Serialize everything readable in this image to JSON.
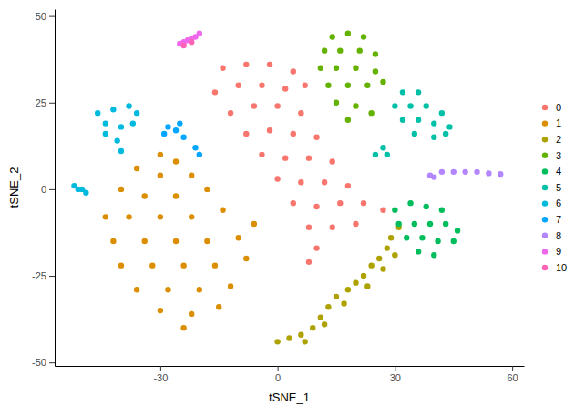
{
  "chart_data": {
    "type": "scatter",
    "xlabel": "tSNE_1",
    "ylabel": "tSNE_2",
    "xlim": [
      -57,
      63
    ],
    "ylim": [
      -51,
      52
    ],
    "xticks": [
      -30,
      0,
      30,
      60
    ],
    "yticks": [
      -50,
      -25,
      0,
      25,
      50
    ],
    "grid": false,
    "legend": "right",
    "marker": "circle",
    "series": [
      {
        "name": "0",
        "color": "#F8766D",
        "x": [
          -14,
          -8,
          -2,
          4,
          -16,
          -10,
          -4,
          2,
          7,
          -12,
          -6,
          0,
          6,
          -8,
          -2,
          4,
          10,
          -4,
          2,
          8,
          14,
          0,
          6,
          12,
          18,
          4,
          10,
          16,
          22,
          27,
          8,
          14,
          20,
          10,
          8
        ],
        "y": [
          35,
          36,
          36,
          34,
          28,
          30,
          30,
          29,
          30,
          22,
          24,
          24,
          22,
          16,
          17,
          16,
          15,
          10,
          9,
          9,
          8,
          3,
          2,
          2,
          1,
          -4,
          -5,
          -4,
          -4,
          -6,
          -11,
          -11,
          -10,
          -17,
          -21
        ]
      },
      {
        "name": "1",
        "color": "#DB8E00",
        "x": [
          -30,
          -26,
          -36,
          -30,
          -22,
          -40,
          -34,
          -26,
          -18,
          -44,
          -38,
          -30,
          -22,
          -14,
          -42,
          -34,
          -26,
          -18,
          -10,
          -6,
          -40,
          -32,
          -24,
          -16,
          -8,
          -36,
          -28,
          -20,
          -12,
          -30,
          -22,
          -15,
          -24
        ],
        "y": [
          10,
          8,
          6,
          4,
          4,
          0,
          -2,
          -2,
          0,
          -8,
          -8,
          -8,
          -8,
          -6,
          -15,
          -15,
          -15,
          -15,
          -14,
          -10,
          -22,
          -22,
          -22,
          -22,
          -20,
          -29,
          -29,
          -29,
          -28,
          -35,
          -36,
          -34,
          -40
        ]
      },
      {
        "name": "2",
        "color": "#AEA200",
        "x": [
          0,
          3,
          6,
          9,
          11,
          13,
          15,
          18,
          20,
          22,
          24,
          26,
          28,
          29,
          31,
          7,
          12,
          17,
          23,
          27,
          30
        ],
        "y": [
          -44,
          -43,
          -42,
          -40,
          -37,
          -34,
          -31,
          -29,
          -27,
          -25,
          -22,
          -20,
          -17,
          -14,
          -11,
          -44,
          -39,
          -33,
          -28,
          -23,
          -19
        ]
      },
      {
        "name": "3",
        "color": "#64B200",
        "x": [
          14,
          18,
          22,
          12,
          16,
          21,
          25,
          11,
          15,
          20,
          25,
          13,
          18,
          23,
          27,
          15,
          20,
          24,
          18
        ],
        "y": [
          44,
          45,
          44,
          40,
          40,
          40,
          39,
          35,
          35,
          35,
          34,
          30,
          30,
          30,
          31,
          25,
          24,
          22,
          20
        ]
      },
      {
        "name": "4",
        "color": "#00BD5C",
        "x": [
          30,
          34,
          38,
          42,
          31,
          35,
          39,
          43,
          46,
          33,
          37,
          41,
          45,
          36,
          40
        ],
        "y": [
          -6,
          -4,
          -5,
          -6,
          -10,
          -10,
          -10,
          -10,
          -12,
          -14,
          -14,
          -15,
          -15,
          -18,
          -19
        ]
      },
      {
        "name": "5",
        "color": "#00C1A7",
        "x": [
          32,
          36,
          30,
          34,
          38,
          42,
          32,
          36,
          40,
          44,
          35,
          40,
          43,
          27,
          25,
          28
        ],
        "y": [
          28,
          28,
          24,
          24,
          24,
          22,
          20,
          20,
          19,
          18,
          16,
          15,
          16,
          12,
          10,
          10
        ]
      },
      {
        "name": "6",
        "color": "#00BADE",
        "x": [
          -46,
          -42,
          -38,
          -36,
          -44,
          -40,
          -37,
          -44,
          -41,
          -40,
          -52,
          -50,
          -49,
          -51
        ],
        "y": [
          22,
          23,
          24,
          22,
          19,
          18,
          19,
          16,
          14,
          11,
          1,
          0,
          -1,
          0
        ]
      },
      {
        "name": "7",
        "color": "#00A6FF",
        "x": [
          -28,
          -26,
          -25,
          -29,
          -24,
          -21,
          -20
        ],
        "y": [
          18,
          17,
          19,
          16,
          15,
          12,
          10
        ]
      },
      {
        "name": "8",
        "color": "#B385FF",
        "x": [
          39,
          42,
          45,
          48,
          51,
          54,
          57,
          40
        ],
        "y": [
          4,
          5,
          5,
          5,
          5,
          4.6,
          4.4,
          3.5
        ]
      },
      {
        "name": "9",
        "color": "#EF67EB",
        "x": [
          -25,
          -24,
          -23,
          -22,
          -21,
          -20
        ],
        "y": [
          42,
          42.5,
          43,
          43.5,
          44,
          45
        ]
      },
      {
        "name": "10",
        "color": "#FF63B6",
        "x": [
          -24,
          -22
        ],
        "y": [
          41.5,
          42.5
        ]
      }
    ]
  }
}
